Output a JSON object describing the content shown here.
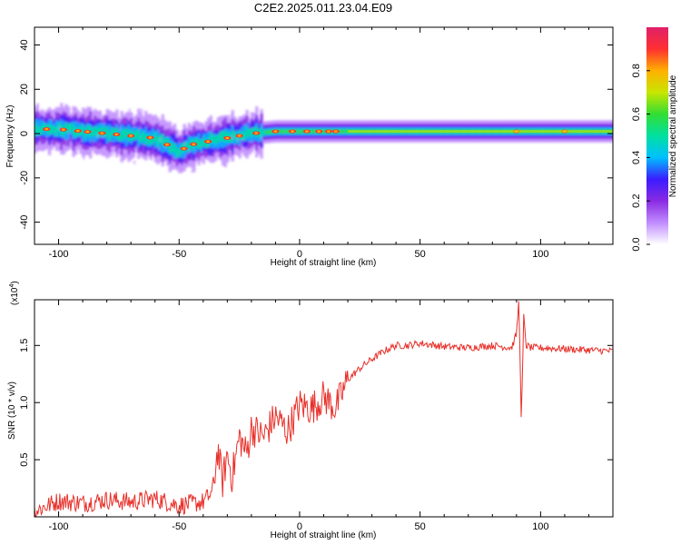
{
  "title": "C2E2.2025.011.23.04.E09",
  "colors": {
    "snr_line": "#e8302a",
    "axis": "#000000"
  },
  "colormap": [
    "#ffffff",
    "#c08cff",
    "#8a2be2",
    "#3a1cff",
    "#00c0ff",
    "#00e0a0",
    "#33dd33",
    "#c8e600",
    "#ffb000",
    "#ff3030",
    "#e0206a"
  ],
  "chart_data": [
    {
      "type": "heatmap",
      "title": "",
      "xlabel": "Height of straight line (km)",
      "ylabel": "Frequency (Hz)",
      "xlim": [
        -110,
        130
      ],
      "ylim": [
        -50,
        48
      ],
      "xticks": [
        -100,
        -50,
        0,
        50,
        100
      ],
      "yticks": [
        -40,
        -20,
        0,
        20,
        40
      ],
      "grid": false,
      "colorbar": {
        "label": "Normalized spectral amplitude",
        "range": [
          0.0,
          1.0
        ],
        "ticks": [
          0.0,
          0.2,
          0.4,
          0.6,
          0.8
        ]
      },
      "ridge": {
        "x": [
          -110,
          -100,
          -90,
          -80,
          -70,
          -60,
          -50,
          -45,
          -40,
          -30,
          -20,
          -10,
          0,
          10,
          20,
          50,
          90,
          110,
          130
        ],
        "frequency": [
          2,
          2,
          1,
          0,
          -1,
          -2,
          -8,
          -5,
          -4,
          -2,
          0,
          1,
          1,
          1,
          1,
          1,
          1,
          1,
          1
        ]
      }
    },
    {
      "type": "line",
      "title": "",
      "xlabel": "Height of straight line (km)",
      "ylabel": "SNR (10 * v/v)",
      "y_multiplier_label": "(x10",
      "y_multiplier_exponent": "4",
      "xlim": [
        -110,
        130
      ],
      "ylim": [
        0,
        1.9
      ],
      "xticks": [
        -100,
        -50,
        0,
        50,
        100
      ],
      "yticks": [
        0.5,
        1.0,
        1.5
      ],
      "ytick_labels": [
        "0.5",
        "1.0",
        "1.5"
      ],
      "grid": false,
      "series": [
        {
          "x": [
            -110,
            -100,
            -90,
            -80,
            -70,
            -60,
            -50,
            -40,
            -36,
            -34,
            -32,
            -30,
            -28,
            -25,
            -22,
            -20,
            -15,
            -10,
            -5,
            0,
            5,
            10,
            15,
            20,
            25,
            30,
            35,
            40,
            45,
            50,
            60,
            70,
            80,
            88,
            90,
            91,
            92,
            93,
            94,
            96,
            100,
            110,
            120,
            130
          ],
          "values": [
            0.05,
            0.14,
            0.12,
            0.15,
            0.13,
            0.16,
            0.1,
            0.13,
            0.22,
            0.6,
            0.3,
            0.55,
            0.35,
            0.7,
            0.55,
            0.78,
            0.7,
            0.88,
            0.75,
            0.98,
            0.95,
            1.05,
            0.95,
            1.2,
            1.3,
            1.38,
            1.45,
            1.5,
            1.5,
            1.52,
            1.49,
            1.48,
            1.5,
            1.48,
            1.6,
            1.9,
            0.82,
            1.75,
            1.5,
            1.48,
            1.48,
            1.47,
            1.46,
            1.45
          ],
          "noise": 0.07
        }
      ]
    }
  ]
}
